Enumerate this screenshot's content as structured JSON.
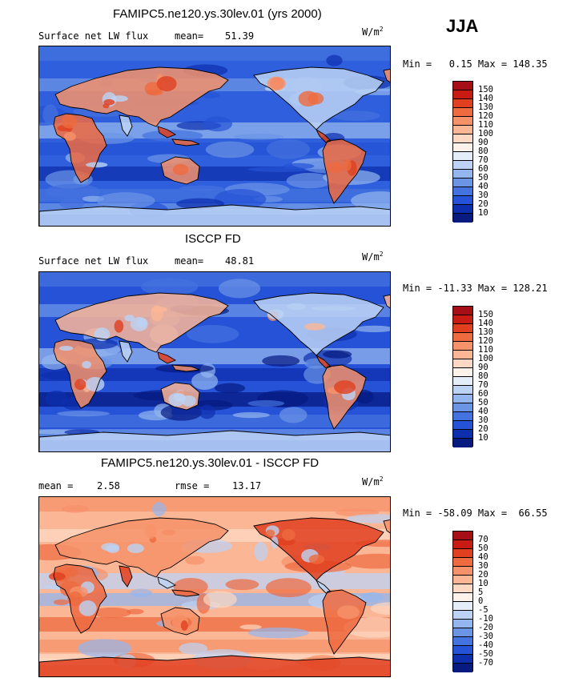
{
  "season": "JJA",
  "panels": [
    {
      "title": "FAMIPC5.ne120.ys.30lev.01 (yrs 2000)",
      "left_label": "Surface net LW flux",
      "stat_label": "mean=",
      "stat_value": "51.39",
      "units": "W/m",
      "units_exp": "2",
      "minmax": "Min =   0.15 Max = 148.35",
      "colorbar": {
        "labels": [
          "150",
          "140",
          "130",
          "120",
          "110",
          "100",
          "90",
          "80",
          "70",
          "60",
          "50",
          "40",
          "30",
          "20",
          "10"
        ],
        "colors": [
          "#a50f15",
          "#c81b14",
          "#e0401f",
          "#ee6a3f",
          "#f6926a",
          "#fbb696",
          "#fdd8c2",
          "#fdf2ea",
          "#e4eefb",
          "#bcd3f5",
          "#94b6ee",
          "#6b94e5",
          "#4472de",
          "#2552d6",
          "#0d2fae",
          "#061a80"
        ]
      },
      "map_scheme": "flux_model"
    },
    {
      "title": "ISCCP FD",
      "left_label": "Surface net LW flux",
      "stat_label": "mean=",
      "stat_value": "48.81",
      "units": "W/m",
      "units_exp": "2",
      "minmax": "Min = -11.33 Max = 128.21",
      "colorbar": {
        "labels": [
          "150",
          "140",
          "130",
          "120",
          "110",
          "100",
          "90",
          "80",
          "70",
          "60",
          "50",
          "40",
          "30",
          "20",
          "10"
        ],
        "colors": [
          "#a50f15",
          "#c81b14",
          "#e0401f",
          "#ee6a3f",
          "#f6926a",
          "#fbb696",
          "#fdd8c2",
          "#fdf2ea",
          "#e4eefb",
          "#bcd3f5",
          "#94b6ee",
          "#6b94e5",
          "#4472de",
          "#2552d6",
          "#0d2fae",
          "#061a80"
        ]
      },
      "map_scheme": "flux_obs"
    },
    {
      "title": "FAMIPC5.ne120.ys.30lev.01 - ISCCP FD",
      "left_label": "mean =",
      "left_value": "2.58",
      "stat_label": "rmse =",
      "stat_value": "13.17",
      "units": "W/m",
      "units_exp": "2",
      "minmax": "Min = -58.09 Max =  66.55",
      "colorbar": {
        "labels": [
          "70",
          "50",
          "40",
          "30",
          "20",
          "10",
          "5",
          "0",
          "-5",
          "-10",
          "-20",
          "-30",
          "-40",
          "-50",
          "-70"
        ],
        "colors": [
          "#a50f15",
          "#c81b14",
          "#e0401f",
          "#ee6a3f",
          "#f6926a",
          "#fbb696",
          "#fdd8c2",
          "#fdf2ea",
          "#e4eefb",
          "#bcd3f5",
          "#94b6ee",
          "#6b94e5",
          "#4472de",
          "#2552d6",
          "#0d2fae",
          "#061a80"
        ]
      },
      "map_scheme": "diff"
    }
  ]
}
